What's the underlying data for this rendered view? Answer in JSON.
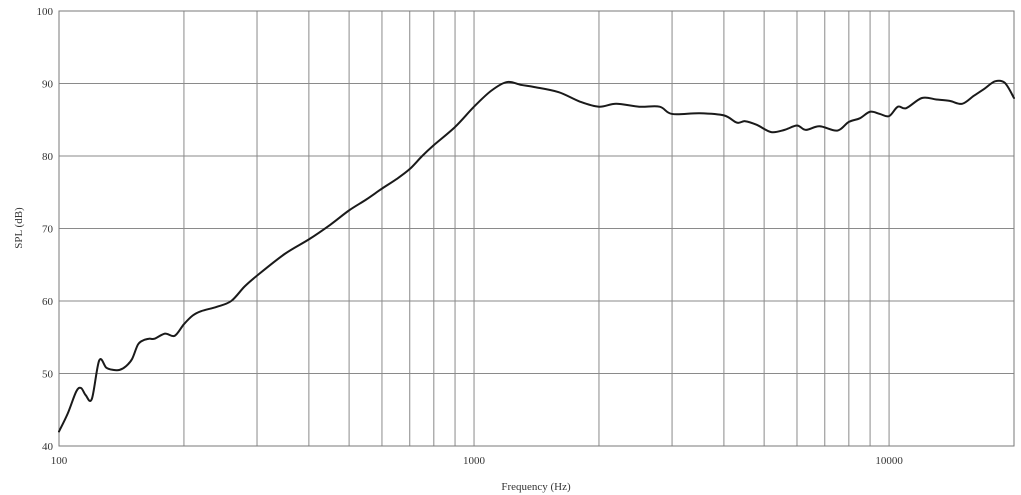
{
  "chart_data": {
    "type": "line",
    "title": "",
    "xlabel": "Frequency (Hz)",
    "ylabel": "SPL (dB)",
    "x_scale": "log",
    "xlim": [
      100,
      20000
    ],
    "ylim": [
      40,
      100
    ],
    "grid": true,
    "x_tick_labels": [
      {
        "value": 100,
        "label": "100"
      },
      {
        "value": 1000,
        "label": "1000"
      },
      {
        "value": 10000,
        "label": "10000"
      }
    ],
    "x_grid_values": [
      200,
      300,
      400,
      500,
      600,
      700,
      800,
      900,
      1000,
      2000,
      3000,
      4000,
      5000,
      6000,
      7000,
      8000,
      9000,
      10000
    ],
    "y_ticks": [
      40,
      50,
      60,
      70,
      80,
      90,
      100
    ],
    "series": [
      {
        "color": "#1a1a1a",
        "x": [
          100,
          105,
          110,
          113,
          116,
          120,
          125,
          130,
          135,
          140,
          145,
          150,
          155,
          160,
          165,
          170,
          180,
          190,
          200,
          210,
          220,
          240,
          260,
          280,
          300,
          350,
          400,
          450,
          500,
          550,
          600,
          650,
          700,
          750,
          800,
          900,
          1000,
          1100,
          1200,
          1300,
          1400,
          1600,
          1800,
          2000,
          2200,
          2500,
          2800,
          3000,
          3500,
          4000,
          4300,
          4500,
          4800,
          5200,
          5600,
          6000,
          6300,
          6800,
          7500,
          8000,
          8500,
          9000,
          9500,
          10000,
          10500,
          11000,
          12000,
          13000,
          14000,
          15000,
          16000,
          17000,
          18000,
          19000,
          20000
        ],
        "y": [
          42,
          44.5,
          47.5,
          48,
          47,
          46.5,
          51.8,
          50.8,
          50.5,
          50.5,
          51,
          52,
          54,
          54.6,
          54.8,
          54.8,
          55.5,
          55.2,
          56.8,
          58,
          58.6,
          59.2,
          60,
          62,
          63.5,
          66.5,
          68.5,
          70.5,
          72.5,
          74,
          75.5,
          76.8,
          78.2,
          80,
          81.5,
          84,
          86.8,
          89,
          90.2,
          89.8,
          89.5,
          88.8,
          87.5,
          86.8,
          87.2,
          86.8,
          86.8,
          85.8,
          85.9,
          85.6,
          84.6,
          84.8,
          84.3,
          83.3,
          83.6,
          84.2,
          83.6,
          84.1,
          83.5,
          84.7,
          85.2,
          86.1,
          85.8,
          85.5,
          86.8,
          86.6,
          88,
          87.8,
          87.6,
          87.2,
          88.3,
          89.3,
          90.3,
          90.1,
          88
        ]
      }
    ]
  }
}
